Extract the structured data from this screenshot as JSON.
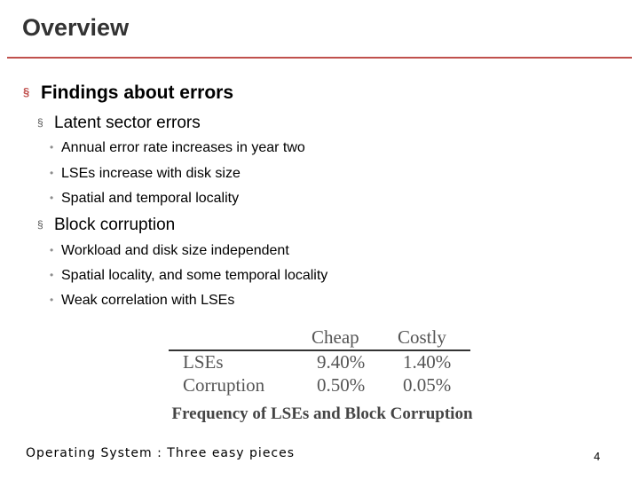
{
  "slide": {
    "title": "Overview",
    "page_number": "4",
    "footer": "Operating System : Three easy pieces"
  },
  "content": {
    "level1": "Findings about errors",
    "groups": [
      {
        "heading": "Latent sector errors",
        "items": [
          "Annual error rate increases in year two",
          "LSEs increase with disk size",
          "Spatial and temporal locality"
        ]
      },
      {
        "heading": "Block corruption",
        "items": [
          "Workload and disk size independent",
          "Spatial locality, and some temporal locality",
          "Weak correlation with LSEs"
        ]
      }
    ]
  },
  "table": {
    "columns": [
      "Cheap",
      "Costly"
    ],
    "rows": [
      {
        "label": "LSEs",
        "cheap": "9.40%",
        "costly": "1.40%"
      },
      {
        "label": "Corruption",
        "cheap": "0.50%",
        "costly": "0.05%"
      }
    ],
    "caption": "Frequency of LSEs and Block Corruption"
  },
  "bullets": {
    "level1": "§",
    "level2": "§",
    "level3": "•"
  },
  "colors": {
    "accent": "#c0504d",
    "title": "#333333"
  }
}
